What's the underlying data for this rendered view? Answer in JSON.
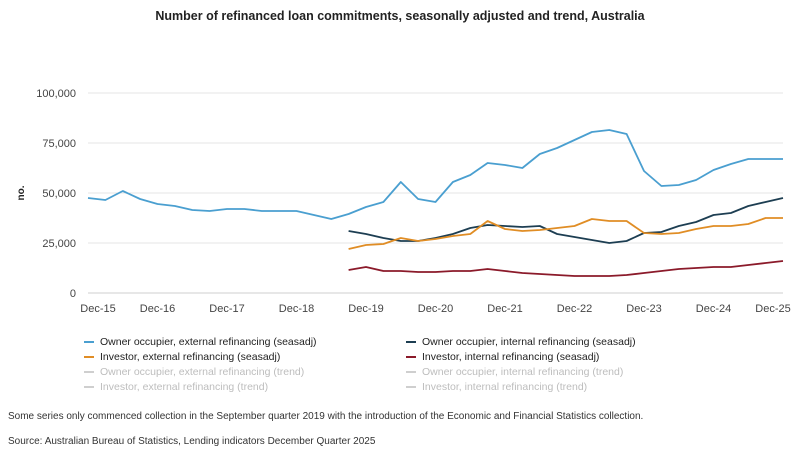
{
  "title": "Number of refinanced loan commitments, seasonally adjusted and trend, Australia",
  "chart_data": {
    "type": "line",
    "ylabel": "no.",
    "ylim": [
      0,
      100000
    ],
    "yticks": [
      0,
      25000,
      50000,
      75000,
      100000
    ],
    "ytick_labels": [
      "0",
      "25,000",
      "50,000",
      "75,000",
      "100,000"
    ],
    "xlim": [
      "Dec-15",
      "Dec-25"
    ],
    "xtick_labels": [
      "Dec-15",
      "Dec-16",
      "Dec-17",
      "Dec-18",
      "Dec-19",
      "Dec-20",
      "Dec-21",
      "Dec-22",
      "Dec-23",
      "Dec-24",
      "Dec-25"
    ],
    "grid": "horizontal",
    "legend_position": "bottom",
    "x": [
      "Dec-15",
      "Mar-16",
      "Jun-16",
      "Sep-16",
      "Dec-16",
      "Mar-17",
      "Jun-17",
      "Sep-17",
      "Dec-17",
      "Mar-18",
      "Jun-18",
      "Sep-18",
      "Dec-18",
      "Mar-19",
      "Jun-19",
      "Sep-19",
      "Dec-19",
      "Mar-20",
      "Jun-20",
      "Sep-20",
      "Dec-20",
      "Mar-21",
      "Jun-21",
      "Sep-21",
      "Dec-21",
      "Mar-22",
      "Jun-22",
      "Sep-22",
      "Dec-22",
      "Mar-23",
      "Jun-23",
      "Sep-23",
      "Dec-23",
      "Mar-24",
      "Jun-24",
      "Sep-24",
      "Dec-24",
      "Mar-25",
      "Jun-25",
      "Sep-25",
      "Dec-25"
    ],
    "series": [
      {
        "name": "Owner occupier, external refinancing (seasadj)",
        "color": "#4a9fd0",
        "values": [
          47500,
          46500,
          51000,
          47000,
          44500,
          43500,
          41500,
          41000,
          42000,
          42000,
          41000,
          41000,
          41000,
          39000,
          37000,
          39500,
          43000,
          45500,
          55500,
          47000,
          45500,
          55500,
          59000,
          65000,
          64000,
          62500,
          69500,
          72500,
          76500,
          80500,
          81500,
          79500,
          61000,
          53500,
          54000,
          56500,
          61500,
          64500,
          67000,
          67000,
          67000
        ]
      },
      {
        "name": "Owner occupier, internal refinancing (seasadj)",
        "color": "#1d3e52",
        "values": [
          null,
          null,
          null,
          null,
          null,
          null,
          null,
          null,
          null,
          null,
          null,
          null,
          null,
          null,
          null,
          31000,
          29500,
          27500,
          26000,
          26000,
          27500,
          29500,
          32500,
          34000,
          33500,
          33000,
          33500,
          29500,
          28000,
          26500,
          25000,
          26000,
          30000,
          30500,
          33500,
          35500,
          39000,
          40000,
          43500,
          45500,
          47500
        ]
      },
      {
        "name": "Investor, external refinancing (seasadj)",
        "color": "#e08d25",
        "values": [
          null,
          null,
          null,
          null,
          null,
          null,
          null,
          null,
          null,
          null,
          null,
          null,
          null,
          null,
          null,
          22000,
          24000,
          24500,
          27500,
          26000,
          27000,
          28500,
          29500,
          36000,
          32000,
          31000,
          31500,
          32500,
          33500,
          37000,
          36000,
          36000,
          30000,
          29500,
          30000,
          32000,
          33500,
          33500,
          34500,
          37500,
          37500
        ]
      },
      {
        "name": "Investor, internal refinancing (seasadj)",
        "color": "#8b1a2a",
        "values": [
          null,
          null,
          null,
          null,
          null,
          null,
          null,
          null,
          null,
          null,
          null,
          null,
          null,
          null,
          null,
          11500,
          13000,
          11000,
          11000,
          10500,
          10500,
          11000,
          11000,
          12000,
          11000,
          10000,
          9500,
          9000,
          8500,
          8500,
          8500,
          9000,
          10000,
          11000,
          12000,
          12500,
          13000,
          13000,
          14000,
          15000,
          16000
        ]
      }
    ],
    "legend": [
      {
        "label": "Owner occupier, external refinancing (seasadj)",
        "color": "#4a9fd0",
        "muted": false
      },
      {
        "label": "Owner occupier, internal refinancing (seasadj)",
        "color": "#1d3e52",
        "muted": false
      },
      {
        "label": "Investor, external refinancing (seasadj)",
        "color": "#e08d25",
        "muted": false
      },
      {
        "label": "Investor, internal refinancing (seasadj)",
        "color": "#8b1a2a",
        "muted": false
      },
      {
        "label": "Owner occupier, external refinancing (trend)",
        "color": "#cfcfcf",
        "muted": true
      },
      {
        "label": "Owner occupier, internal refinancing (trend)",
        "color": "#cfcfcf",
        "muted": true
      },
      {
        "label": "Investor, external refinancing (trend)",
        "color": "#cfcfcf",
        "muted": true
      },
      {
        "label": "Investor, internal refinancing (trend)",
        "color": "#cfcfcf",
        "muted": true
      }
    ]
  },
  "footnote": "Some series only commenced collection in the September quarter 2019 with the introduction of the Economic and Financial Statistics collection.",
  "source": "Source: Australian Bureau of Statistics, Lending indicators December Quarter 2025"
}
